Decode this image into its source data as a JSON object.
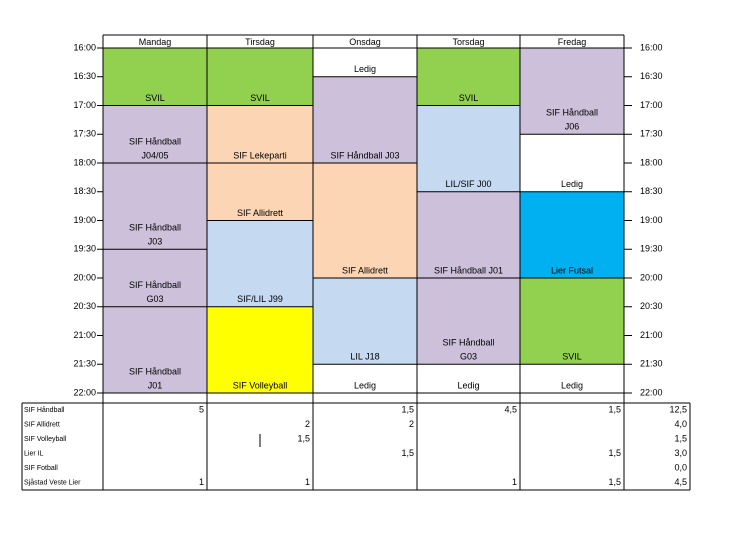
{
  "schedule": {
    "days": [
      "Mandag",
      "Tirsdag",
      "Onsdag",
      "Torsdag",
      "Fredag"
    ],
    "times": [
      "16:00",
      "16:30",
      "17:00",
      "17:30",
      "18:00",
      "18:30",
      "19:00",
      "19:30",
      "20:00",
      "20:30",
      "21:00",
      "21:30",
      "22:00"
    ],
    "blocks": [
      [
        {
          "start": "16:00",
          "end": "17:00",
          "label": [
            "SVIL"
          ],
          "color": "#92d050"
        },
        {
          "start": "17:00",
          "end": "18:00",
          "label": [
            "SIF Håndball",
            "J04/05"
          ],
          "color": "#ccc0da"
        },
        {
          "start": "18:00",
          "end": "19:30",
          "label": [
            "SIF Håndball",
            "J03"
          ],
          "color": "#ccc0da"
        },
        {
          "start": "19:30",
          "end": "20:30",
          "label": [
            "SIF Håndball",
            "G03"
          ],
          "color": "#ccc0da"
        },
        {
          "start": "20:30",
          "end": "22:00",
          "label": [
            "SIF Håndball",
            "J01"
          ],
          "color": "#ccc0da"
        }
      ],
      [
        {
          "start": "16:00",
          "end": "17:00",
          "label": [
            "SVIL"
          ],
          "color": "#92d050"
        },
        {
          "start": "17:00",
          "end": "18:00",
          "label": [
            "SIF Lekeparti"
          ],
          "color": "#fcd5b4"
        },
        {
          "start": "18:00",
          "end": "19:00",
          "label": [
            "SIF Allidrett"
          ],
          "color": "#fcd5b4"
        },
        {
          "start": "19:00",
          "end": "20:30",
          "label": [
            "SIF/LIL J99"
          ],
          "color": "#c5d9f1"
        },
        {
          "start": "20:30",
          "end": "22:00",
          "label": [
            "SIF Volleyball"
          ],
          "color": "#ffff00"
        }
      ],
      [
        {
          "start": "16:00",
          "end": "16:30",
          "label": [
            "Ledig"
          ],
          "color": "#ffffff"
        },
        {
          "start": "16:30",
          "end": "18:00",
          "label": [
            "SIF Håndball J03"
          ],
          "color": "#ccc0da"
        },
        {
          "start": "18:00",
          "end": "20:00",
          "label": [
            "SIF Allidrett"
          ],
          "color": "#fcd5b4"
        },
        {
          "start": "20:00",
          "end": "21:30",
          "label": [
            "LIL J18"
          ],
          "color": "#c5d9f1"
        },
        {
          "start": "21:30",
          "end": "22:00",
          "label": [
            "Ledig"
          ],
          "color": "#ffffff"
        }
      ],
      [
        {
          "start": "16:00",
          "end": "17:00",
          "label": [
            "SVIL"
          ],
          "color": "#92d050"
        },
        {
          "start": "17:00",
          "end": "18:30",
          "label": [
            "LIL/SIF J00"
          ],
          "color": "#c5d9f1"
        },
        {
          "start": "18:30",
          "end": "20:00",
          "label": [
            "SIF Håndball J01"
          ],
          "color": "#ccc0da"
        },
        {
          "start": "20:00",
          "end": "21:30",
          "label": [
            "SIF Håndball",
            "G03"
          ],
          "color": "#ccc0da"
        },
        {
          "start": "21:30",
          "end": "22:00",
          "label": [
            "Ledig"
          ],
          "color": "#ffffff"
        }
      ],
      [
        {
          "start": "16:00",
          "end": "17:30",
          "label": [
            "SIF Håndball",
            "J06"
          ],
          "color": "#ccc0da"
        },
        {
          "start": "17:30",
          "end": "18:30",
          "label": [
            "Ledig"
          ],
          "color": "#ffffff"
        },
        {
          "start": "18:30",
          "end": "20:00",
          "label": [
            "Lier Futsal"
          ],
          "color": "#00b0f0"
        },
        {
          "start": "20:00",
          "end": "21:30",
          "label": [
            "SVIL"
          ],
          "color": "#92d050"
        },
        {
          "start": "21:30",
          "end": "22:00",
          "label": [
            "Ledig"
          ],
          "color": "#ffffff"
        }
      ]
    ]
  },
  "summary": {
    "rows": [
      [
        "SIF Håndball",
        "5",
        null,
        "1,5",
        "4,5",
        "1,5",
        "12,5"
      ],
      [
        "SIF Allidrett",
        null,
        "2",
        "2",
        null,
        null,
        "4,0"
      ],
      [
        "SIF Volleyball",
        null,
        "1,5",
        null,
        null,
        null,
        "1,5"
      ],
      [
        "Lier IL",
        null,
        null,
        "1,5",
        null,
        "1,5",
        "3,0"
      ],
      [
        "SIF Fotball",
        null,
        null,
        null,
        null,
        null,
        "0,0"
      ],
      [
        "Sjåstad Veste Lier",
        "1",
        "1",
        null,
        "1",
        "1,5",
        "4,5"
      ]
    ]
  }
}
